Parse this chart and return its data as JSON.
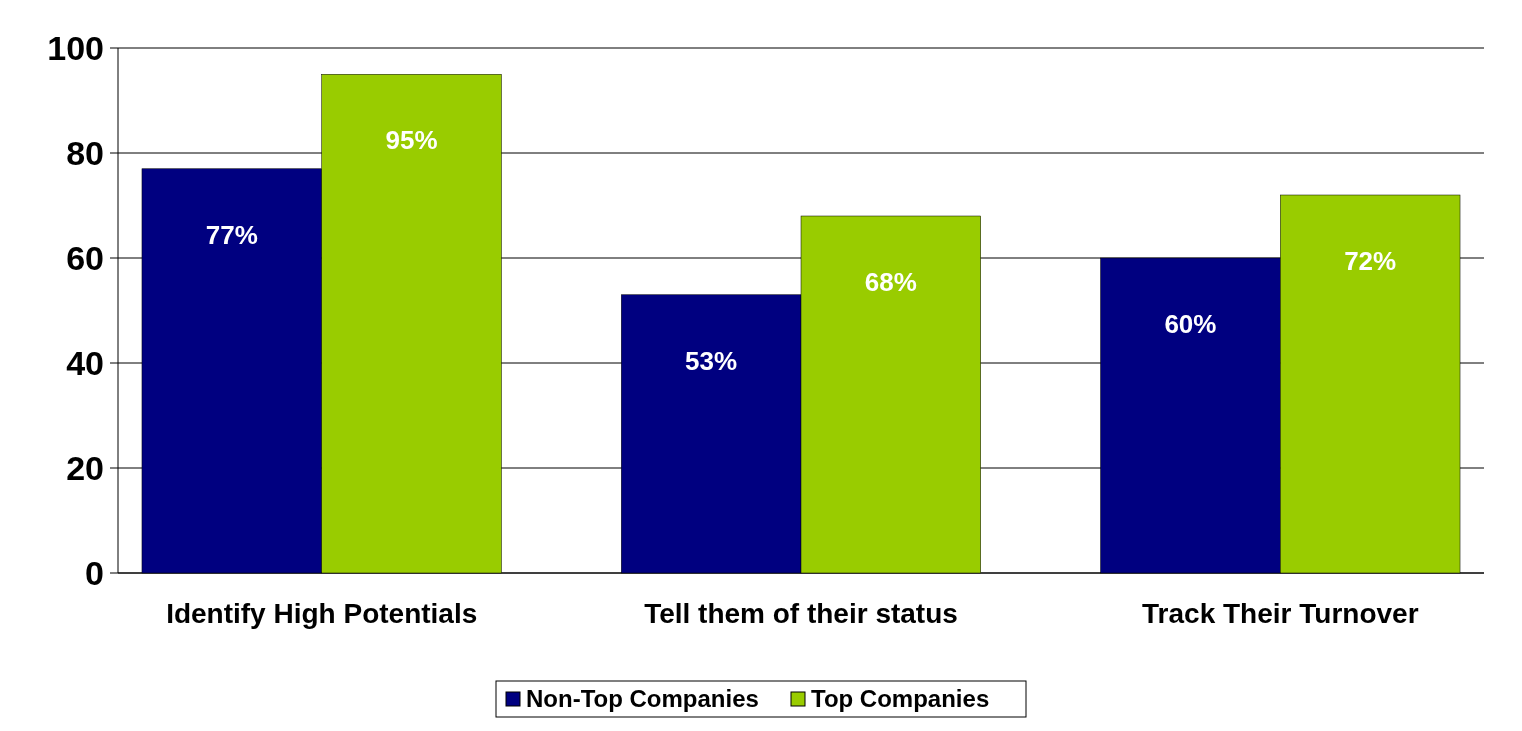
{
  "chart_data": {
    "type": "bar",
    "categories": [
      "Identify High Potentials",
      "Tell them of their status",
      "Track Their Turnover"
    ],
    "series": [
      {
        "name": "Non-Top Companies",
        "color": "#000080",
        "values": [
          77,
          53,
          60
        ],
        "value_labels": [
          "77%",
          "53%",
          "60%"
        ]
      },
      {
        "name": "Top Companies",
        "color": "#99cc00",
        "values": [
          95,
          68,
          72
        ],
        "value_labels": [
          "95%",
          "68%",
          "72%"
        ]
      }
    ],
    "ylim": [
      0,
      100
    ],
    "yticks": [
      0,
      20,
      40,
      60,
      80,
      100
    ],
    "grid": "y",
    "legend": "bottom"
  }
}
